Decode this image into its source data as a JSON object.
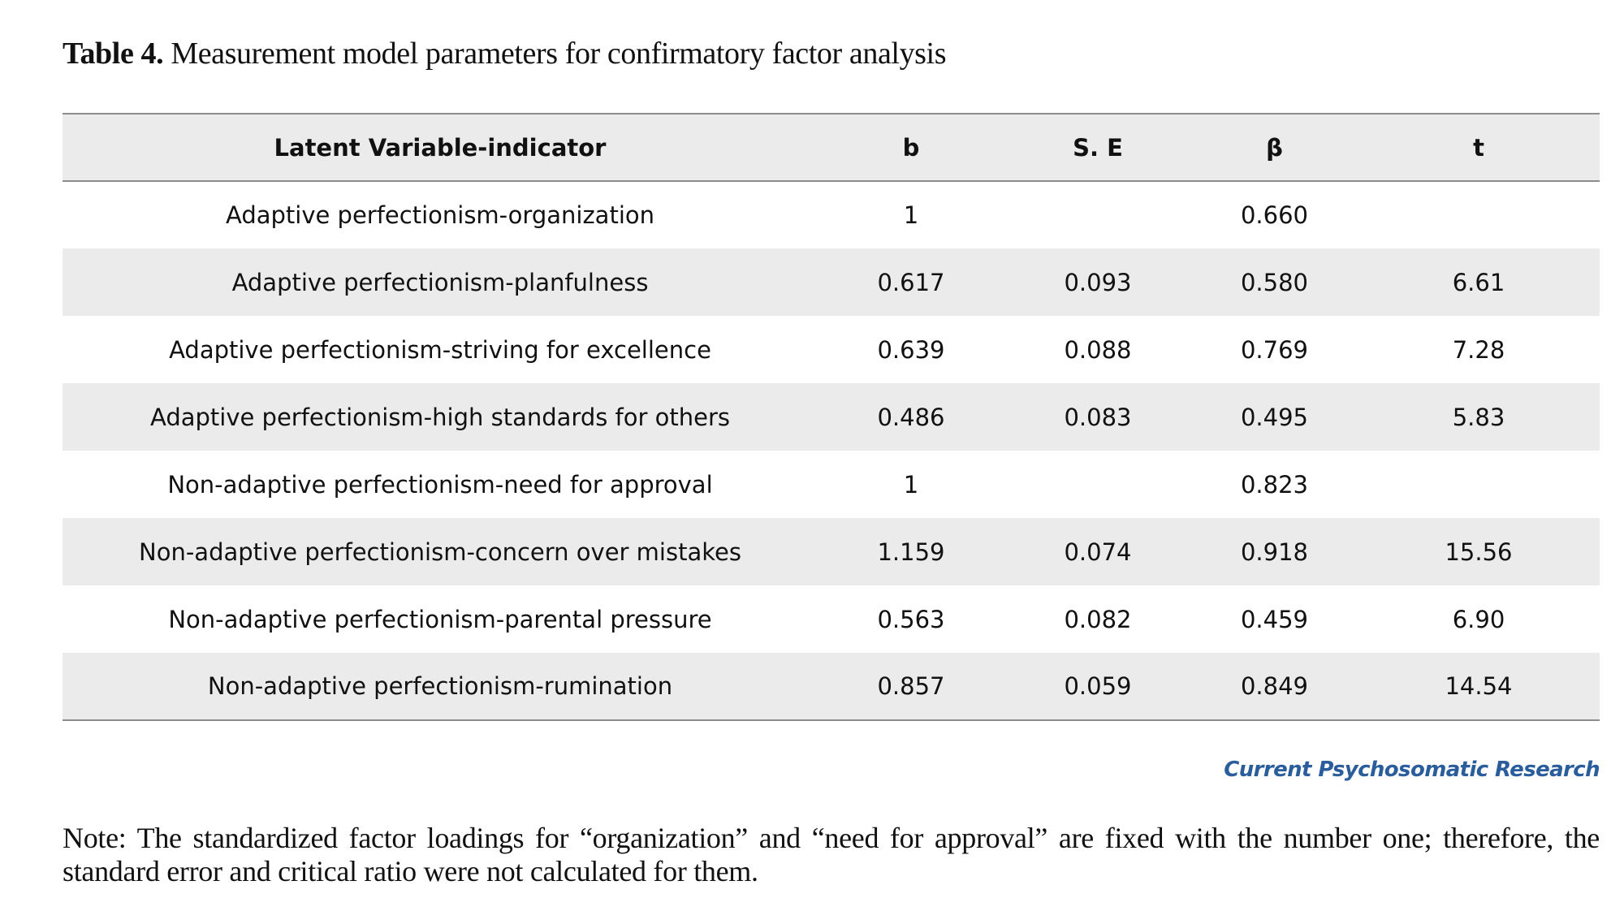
{
  "caption": {
    "label": "Table 4.",
    "text": "Measurement model parameters for confirmatory factor analysis"
  },
  "table": {
    "headers": [
      "Latent Variable-indicator",
      "b",
      "S. E",
      "β",
      "t"
    ],
    "rows": [
      [
        "Adaptive perfectionism-organization",
        "1",
        "",
        "0.660",
        ""
      ],
      [
        "Adaptive perfectionism-planfulness",
        "0.617",
        "0.093",
        "0.580",
        "6.61"
      ],
      [
        "Adaptive perfectionism-striving for excellence",
        "0.639",
        "0.088",
        "0.769",
        "7.28"
      ],
      [
        "Adaptive perfectionism-high standards for others",
        "0.486",
        "0.083",
        "0.495",
        "5.83"
      ],
      [
        "Non-adaptive perfectionism-need for approval",
        "1",
        "",
        "0.823",
        ""
      ],
      [
        "Non-adaptive perfectionism-concern over mistakes",
        "1.159",
        "0.074",
        "0.918",
        "15.56"
      ],
      [
        "Non-adaptive perfectionism-parental pressure",
        "0.563",
        "0.082",
        "0.459",
        "6.90"
      ],
      [
        "Non-adaptive perfectionism-rumination",
        "0.857",
        "0.059",
        "0.849",
        "14.54"
      ]
    ]
  },
  "brand": {
    "text": "Current Psychosomatic Research",
    "color": "#2a5d9c"
  },
  "note": {
    "text": "Note: The standardized factor loadings for “organization” and “need for approval” are fixed with the number one; therefore, the standard error and critical ratio were not calculated for them."
  }
}
